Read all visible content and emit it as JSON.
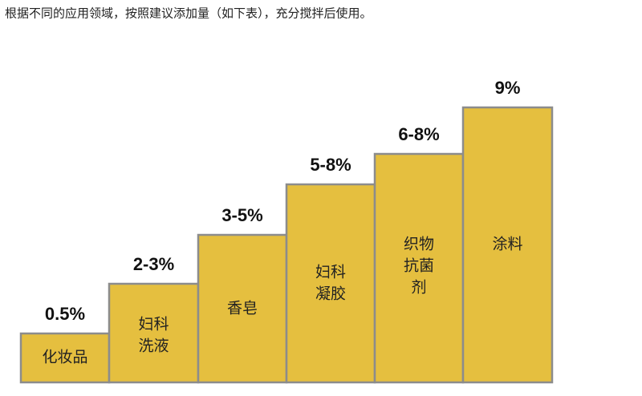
{
  "caption": "根据不同的应用领域，按照建议添加量（如下表），充分搅拌后使用。",
  "steps": [
    {
      "amount": "0.5%",
      "label_lines": [
        "化妆品"
      ]
    },
    {
      "amount": "2-3%",
      "label_lines": [
        "妇科",
        "洗液"
      ]
    },
    {
      "amount": "3-5%",
      "label_lines": [
        "香皂"
      ]
    },
    {
      "amount": "5-8%",
      "label_lines": [
        "妇科",
        "凝胶"
      ]
    },
    {
      "amount": "6-8%",
      "label_lines": [
        "织物",
        "抗菌",
        "剂"
      ]
    },
    {
      "amount": "9%",
      "label_lines": [
        "涂料"
      ]
    }
  ]
}
